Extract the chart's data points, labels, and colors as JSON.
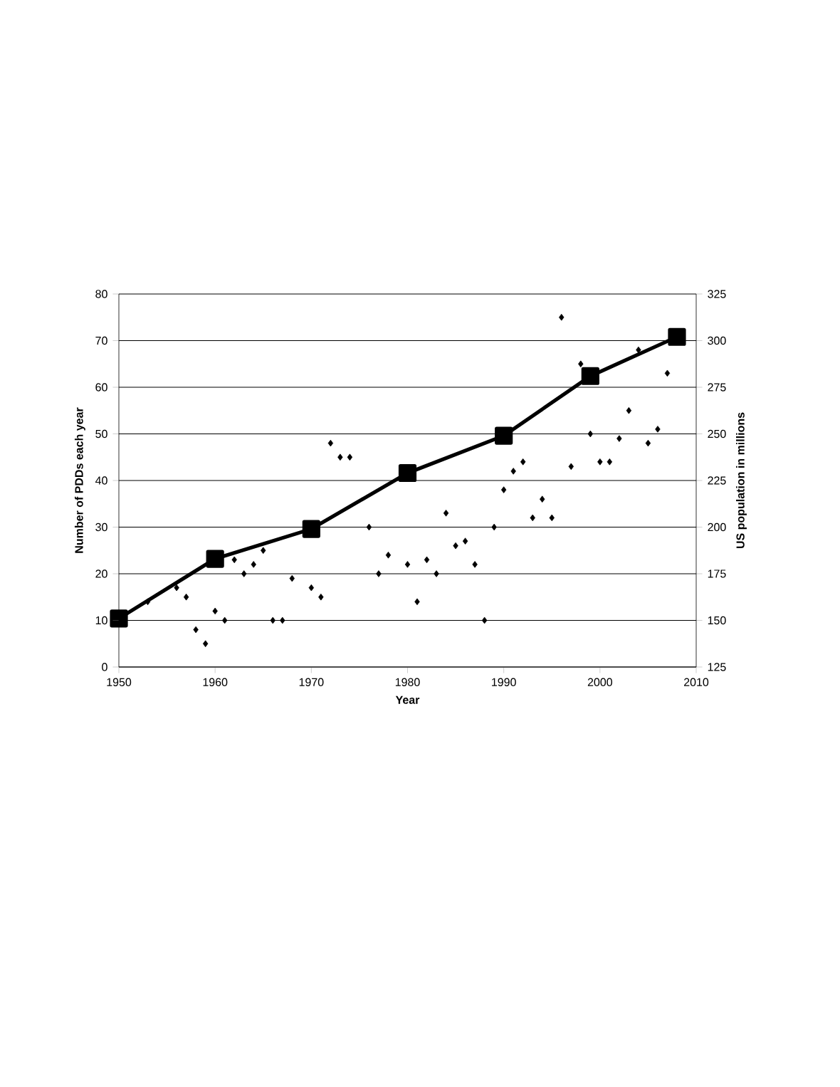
{
  "chart_data": {
    "type": "scatter",
    "xlabel": "Year",
    "ylabel": "Number of PDDs each year",
    "y2label": "US population in millions",
    "xlim": [
      1950,
      2010
    ],
    "xticks": [
      1950,
      1960,
      1970,
      1980,
      1990,
      2000,
      2010
    ],
    "ylim": [
      0,
      80
    ],
    "yticks": [
      0,
      10,
      20,
      30,
      40,
      50,
      60,
      70,
      80
    ],
    "y2lim": [
      125,
      325
    ],
    "y2ticks": [
      125,
      150,
      175,
      200,
      225,
      250,
      275,
      300,
      325
    ],
    "grid": "y",
    "series": [
      {
        "color": "#000000",
        "marker": "diamond",
        "x": [
          1953,
          1956,
          1957,
          1958,
          1959,
          1960,
          1961,
          1962,
          1963,
          1964,
          1965,
          1966,
          1967,
          1968,
          1970,
          1971,
          1972,
          1973,
          1974,
          1976,
          1977,
          1978,
          1980,
          1981,
          1982,
          1983,
          1984,
          1985,
          1986,
          1987,
          1988,
          1989,
          1990,
          1991,
          1992,
          1993,
          1994,
          1995,
          1996,
          1997,
          1998,
          1999,
          2000,
          2001,
          2002,
          2003,
          2004,
          2005,
          2006,
          2007
        ],
        "values": [
          14,
          17,
          15,
          8,
          5,
          12,
          10,
          23,
          20,
          22,
          25,
          10,
          10,
          19,
          17,
          15,
          48,
          45,
          45,
          30,
          20,
          24,
          22,
          14,
          23,
          20,
          33,
          26,
          27,
          22,
          10,
          30,
          38,
          42,
          44,
          32,
          36,
          32,
          75,
          43,
          65,
          50,
          44,
          44,
          49,
          55,
          68,
          48,
          51,
          63
        ]
      },
      {
        "type": "line",
        "axis": "y2",
        "color": "#000000",
        "marker": "square",
        "x": [
          1950,
          1960,
          1970,
          1980,
          1990,
          1999,
          2008
        ],
        "values": [
          151,
          183,
          199,
          229,
          249,
          281,
          302
        ]
      }
    ]
  }
}
